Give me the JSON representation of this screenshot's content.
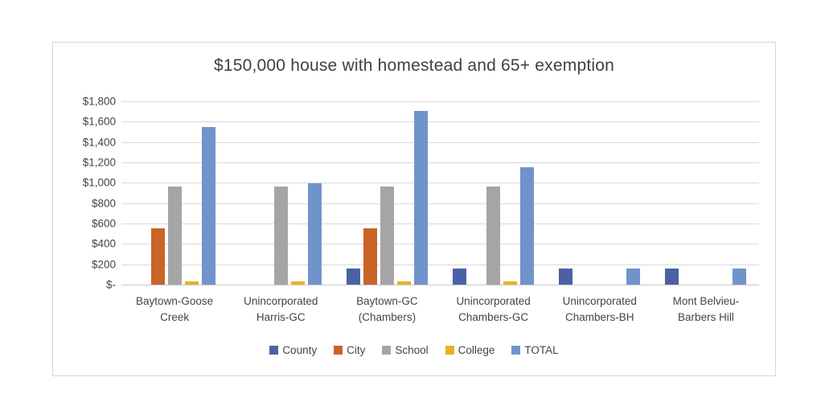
{
  "chart_data": {
    "type": "bar",
    "title": "$150,000 house with homestead and 65+ exemption",
    "categories": [
      [
        "Baytown-Goose",
        "Creek"
      ],
      [
        "Unincorporated",
        "Harris-GC"
      ],
      [
        "Baytown-GC",
        "(Chambers)"
      ],
      [
        "Unincorporated",
        "Chambers-GC"
      ],
      [
        "Unincorporated",
        "Chambers-BH"
      ],
      [
        "Mont Belvieu-",
        "Barbers Hill"
      ]
    ],
    "series": [
      {
        "name": "County",
        "color": "#4A61A5",
        "values": [
          0,
          0,
          160,
          160,
          160,
          160
        ]
      },
      {
        "name": "City",
        "color": "#C96328",
        "values": [
          550,
          0,
          550,
          0,
          0,
          0
        ]
      },
      {
        "name": "School",
        "color": "#A5A5A5",
        "values": [
          960,
          960,
          960,
          960,
          0,
          0
        ]
      },
      {
        "name": "College",
        "color": "#E8B220",
        "values": [
          35,
          35,
          35,
          35,
          0,
          0
        ]
      },
      {
        "name": "TOTAL",
        "color": "#7193CC",
        "values": [
          1545,
          995,
          1705,
          1155,
          160,
          160
        ]
      }
    ],
    "ylim": [
      0,
      1800
    ],
    "y_tick_step": 200,
    "y_tick_labels": [
      "$1,800",
      "$1,600",
      "$1,400",
      "$1,200",
      "$1,000",
      "$800",
      "$600",
      "$400",
      "$200",
      "$-"
    ],
    "grid": true,
    "legend_position": "bottom",
    "xlabel": "",
    "ylabel": ""
  },
  "colors": {
    "background": "#FFFFFF",
    "chart_border": "#D6D6D6",
    "gridline": "#D9D9D9",
    "axis_line": "#C8C8C8",
    "text": "#444444",
    "title_text": "#404040"
  }
}
